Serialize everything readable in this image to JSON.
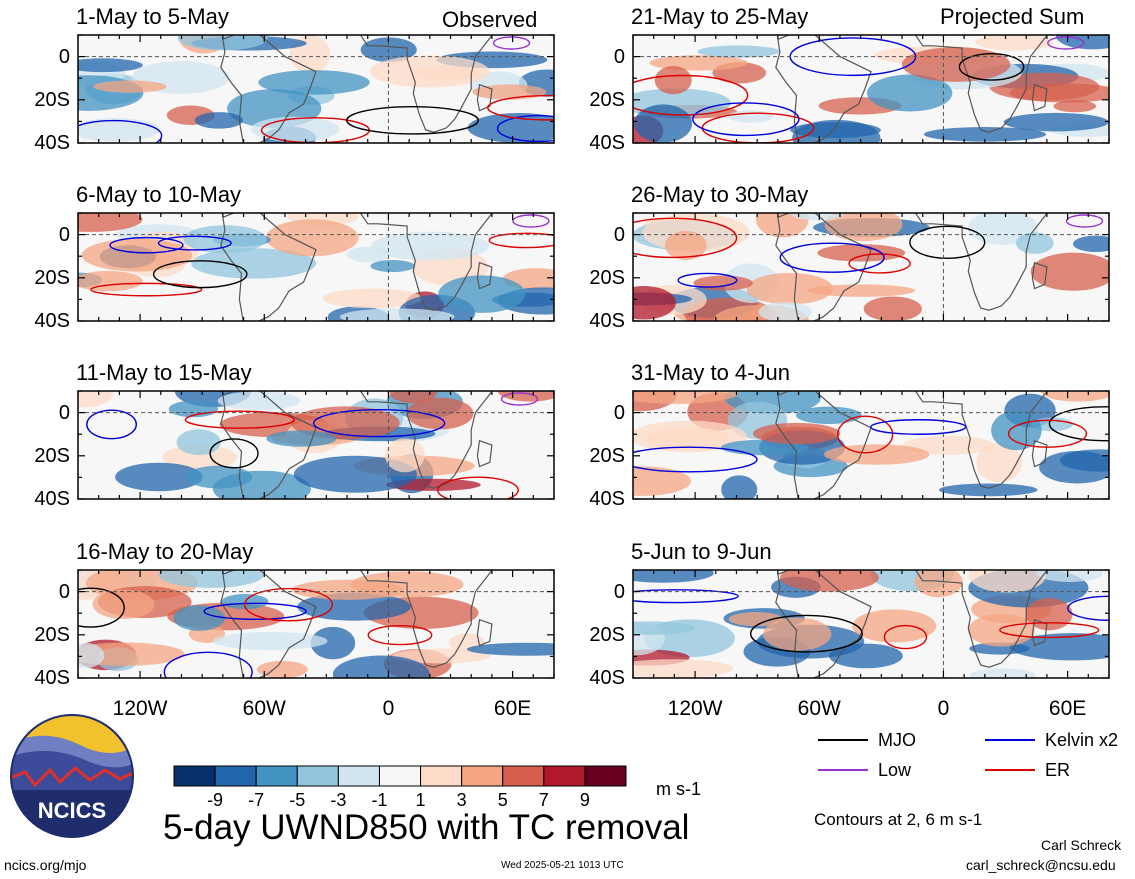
{
  "title": "5-day UWND850 with TC removal",
  "labels": {
    "left_column": "Observed",
    "right_column": "Projected Sum"
  },
  "units": "m s-1",
  "contour_note": "Contours at 2, 6 m s-1",
  "author": "Carl Schreck",
  "email": "carl_schreck@ncsu.edu",
  "website": "ncics.org/mjo",
  "timestamp": "Wed 2025-05-21 1013 UTC",
  "logo_text": "NCICS",
  "colors": {
    "colorbar": [
      "#08306b",
      "#2166ac",
      "#4393c3",
      "#92c5de",
      "#d1e5f0",
      "#f7f7f7",
      "#fddbc7",
      "#f4a582",
      "#d6604d",
      "#b2182b",
      "#67001f"
    ],
    "mjo": "#000000",
    "low": "#9932cc",
    "kelvin": "#0000dd",
    "er": "#dd0000"
  },
  "legend": [
    {
      "label": "MJO",
      "color": "#000000"
    },
    {
      "label": "Kelvin x2",
      "color": "#0000dd"
    },
    {
      "label": "Low",
      "color": "#9932cc"
    },
    {
      "label": "ER",
      "color": "#dd0000"
    }
  ],
  "colorbar_ticks": [
    "-9",
    "-7",
    "-5",
    "-3",
    "-1",
    "1",
    "3",
    "5",
    "7",
    "9"
  ],
  "chart_data": [
    {
      "type": "heatmap",
      "title": "1-May to 5-May",
      "xticks": [
        "120W",
        "60W",
        "0",
        "60E"
      ],
      "yticks": [
        "0",
        "20S",
        "40S"
      ],
      "ylim": [
        -40,
        10
      ],
      "xlim": [
        -150,
        80
      ]
    },
    {
      "type": "heatmap",
      "title": "6-May to 10-May",
      "xticks": [
        "120W",
        "60W",
        "0",
        "60E"
      ],
      "yticks": [
        "0",
        "20S",
        "40S"
      ],
      "ylim": [
        -40,
        10
      ],
      "xlim": [
        -150,
        80
      ]
    },
    {
      "type": "heatmap",
      "title": "11-May to 15-May",
      "xticks": [
        "120W",
        "60W",
        "0",
        "60E"
      ],
      "yticks": [
        "0",
        "20S",
        "40S"
      ],
      "ylim": [
        -40,
        10
      ],
      "xlim": [
        -150,
        80
      ]
    },
    {
      "type": "heatmap",
      "title": "16-May to 20-May",
      "xticks": [
        "120W",
        "60W",
        "0",
        "60E"
      ],
      "yticks": [
        "0",
        "20S",
        "40S"
      ],
      "ylim": [
        -40,
        10
      ],
      "xlim": [
        -150,
        80
      ]
    },
    {
      "type": "heatmap",
      "title": "21-May to 25-May",
      "xticks": [
        "120W",
        "60W",
        "0",
        "60E"
      ],
      "yticks": [
        "0",
        "20S",
        "40S"
      ],
      "ylim": [
        -40,
        10
      ],
      "xlim": [
        -150,
        80
      ]
    },
    {
      "type": "heatmap",
      "title": "26-May to 30-May",
      "xticks": [
        "120W",
        "60W",
        "0",
        "60E"
      ],
      "yticks": [
        "0",
        "20S",
        "40S"
      ],
      "ylim": [
        -40,
        10
      ],
      "xlim": [
        -150,
        80
      ]
    },
    {
      "type": "heatmap",
      "title": "31-May to 4-Jun",
      "xticks": [
        "120W",
        "60W",
        "0",
        "60E"
      ],
      "yticks": [
        "0",
        "20S",
        "40S"
      ],
      "ylim": [
        -40,
        10
      ],
      "xlim": [
        -150,
        80
      ]
    },
    {
      "type": "heatmap",
      "title": "5-Jun to 9-Jun",
      "xticks": [
        "120W",
        "60W",
        "0",
        "60E"
      ],
      "yticks": [
        "0",
        "20S",
        "40S"
      ],
      "ylim": [
        -40,
        10
      ],
      "xlim": [
        -150,
        80
      ]
    }
  ]
}
